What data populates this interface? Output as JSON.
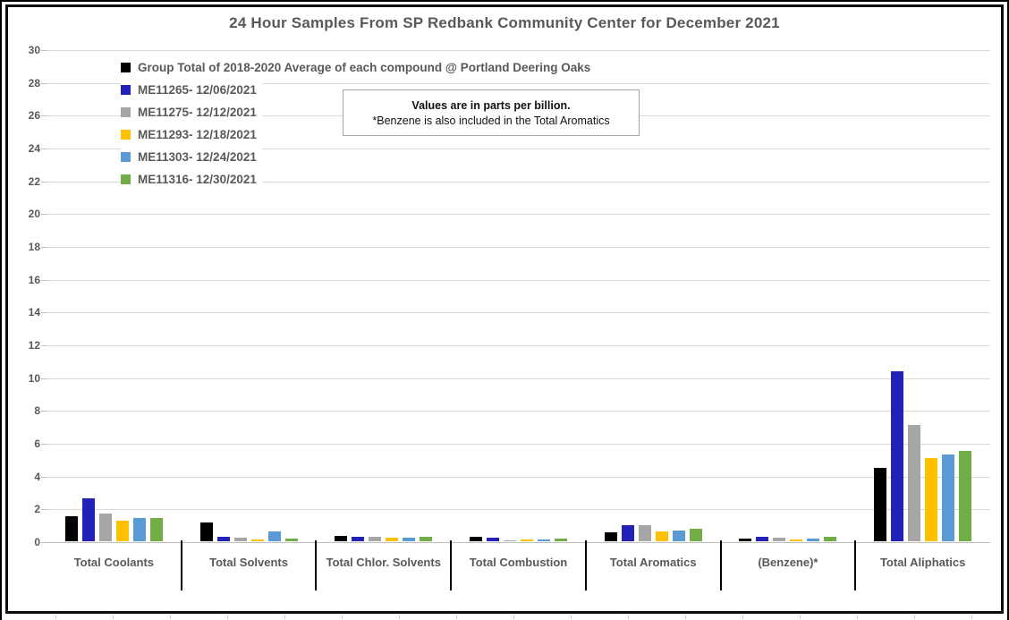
{
  "title_bar": {
    "chart_title": "24 Hour Samples From SP Redbank Community Center for December 2021"
  },
  "note": {
    "line1": "Values are in parts per billion.",
    "line2": "*Benzene is also included in the Total Aromatics"
  },
  "colors": {
    "title_text": "#595959",
    "axis_text": "#595959",
    "gridline": "#d9d9d9",
    "axis_line": "#bfbfbf",
    "category_separator": "#000000",
    "frame_border": "#0d0d0d"
  },
  "chart_data": {
    "type": "bar",
    "title": "24 Hour Samples From SP Redbank Community Center for December 2021",
    "units": "parts per billion",
    "categories": [
      "Total Coolants",
      "Total Solvents",
      "Total Chlor. Solvents",
      "Total Combustion",
      "Total Aromatics",
      "(Benzene)*",
      "Total Aliphatics"
    ],
    "series": [
      {
        "name": "Group Total of 2018-2020 Average of each compound @ Portland Deering Oaks",
        "color": "#000000",
        "values": [
          1.55,
          1.15,
          0.35,
          0.25,
          0.55,
          0.15,
          4.5
        ]
      },
      {
        "name": "ME11265- 12/06/2021",
        "color": "#2222b8",
        "values": [
          2.6,
          0.25,
          0.3,
          0.2,
          1.0,
          0.25,
          10.35
        ]
      },
      {
        "name": "ME11275- 12/12/2021",
        "color": "#a6a6a6",
        "values": [
          1.7,
          0.2,
          0.25,
          0.08,
          1.0,
          0.2,
          7.1
        ]
      },
      {
        "name": "ME11293- 12/18/2021",
        "color": "#ffc000",
        "values": [
          1.25,
          0.13,
          0.2,
          0.1,
          0.6,
          0.12,
          5.05
        ]
      },
      {
        "name": "ME11303- 12/24/2021",
        "color": "#5b9bd5",
        "values": [
          1.4,
          0.6,
          0.2,
          0.1,
          0.65,
          0.15,
          5.3
        ]
      },
      {
        "name": "ME11316- 12/30/2021",
        "color": "#70ad47",
        "values": [
          1.4,
          0.18,
          0.25,
          0.15,
          0.75,
          0.25,
          5.5
        ]
      }
    ],
    "ylim": [
      0,
      30
    ],
    "ytick_step": 2,
    "xlabel": "",
    "ylabel": "",
    "grid": true,
    "legend_position": "top-left"
  }
}
